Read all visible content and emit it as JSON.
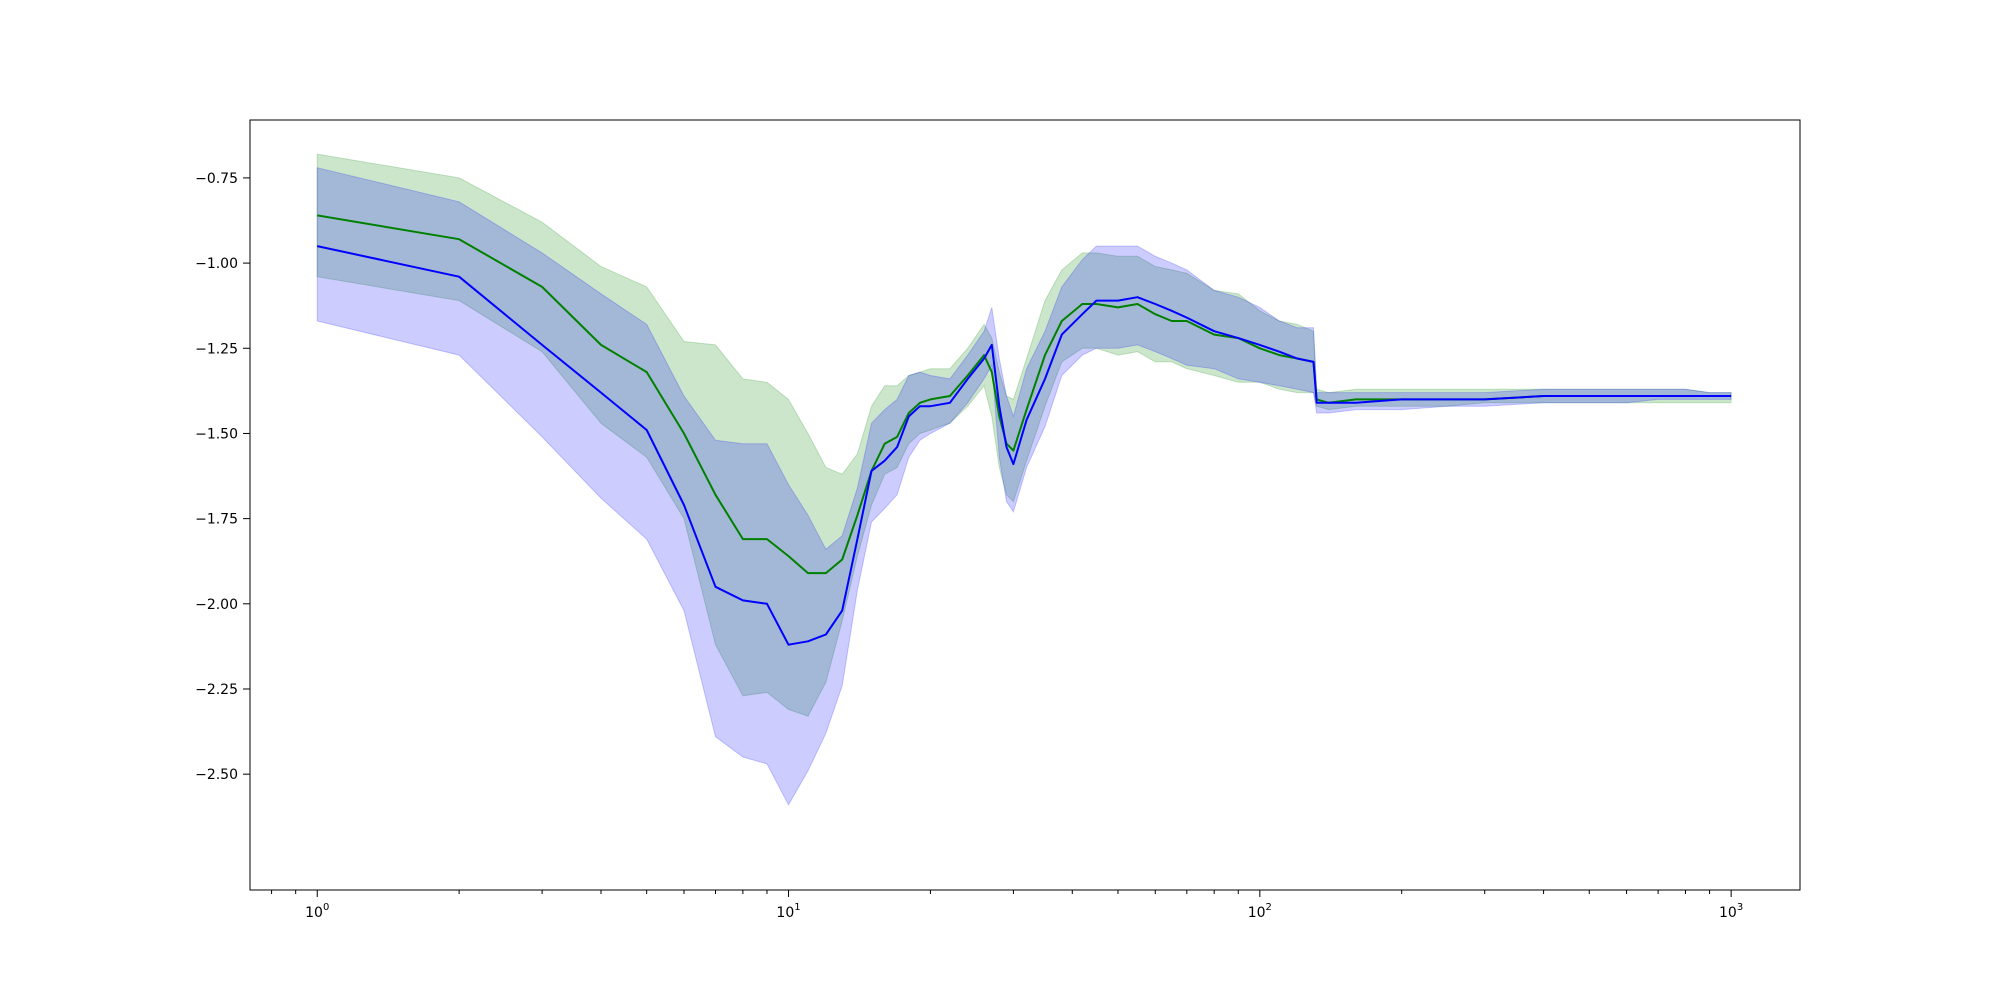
{
  "chart_data": {
    "type": "line",
    "title": "",
    "xlabel": "",
    "ylabel": "",
    "x_scale": "log",
    "xlim": [
      0.72,
      1400
    ],
    "ylim": [
      -2.84,
      -0.58
    ],
    "grid": false,
    "x_tick_labels": [
      {
        "value": 1,
        "base": "10",
        "exp": "0"
      },
      {
        "value": 10,
        "base": "10",
        "exp": "1"
      },
      {
        "value": 100,
        "base": "10",
        "exp": "2"
      },
      {
        "value": 1000,
        "base": "10",
        "exp": "3"
      }
    ],
    "y_ticks": [
      -0.75,
      -1.0,
      -1.25,
      -1.5,
      -1.75,
      -2.0,
      -2.25,
      -2.5
    ],
    "y_tick_labels": [
      "−0.75",
      "−1.00",
      "−1.25",
      "−1.50",
      "−1.75",
      "−2.00",
      "−2.25",
      "−2.50"
    ],
    "series": [
      {
        "color": "#008000",
        "band_color": "#008000",
        "band_opacity": 0.2,
        "x": [
          1,
          2,
          3,
          4,
          5,
          6,
          7,
          8,
          9,
          10,
          11,
          12,
          13,
          14,
          15,
          16,
          17,
          18,
          19,
          20,
          22,
          24,
          26,
          27,
          28,
          29,
          30,
          32,
          35,
          38,
          42,
          45,
          50,
          55,
          60,
          65,
          70,
          80,
          90,
          100,
          110,
          120,
          130,
          132,
          140,
          160,
          200,
          250,
          300,
          400,
          500,
          600,
          700,
          800,
          900,
          1000
        ],
        "y": [
          -0.86,
          -0.93,
          -1.07,
          -1.24,
          -1.32,
          -1.5,
          -1.68,
          -1.81,
          -1.81,
          -1.86,
          -1.91,
          -1.91,
          -1.87,
          -1.74,
          -1.61,
          -1.53,
          -1.51,
          -1.44,
          -1.41,
          -1.4,
          -1.39,
          -1.33,
          -1.27,
          -1.32,
          -1.45,
          -1.53,
          -1.55,
          -1.43,
          -1.27,
          -1.17,
          -1.12,
          -1.12,
          -1.13,
          -1.12,
          -1.15,
          -1.17,
          -1.17,
          -1.21,
          -1.22,
          -1.25,
          -1.27,
          -1.28,
          -1.29,
          -1.4,
          -1.41,
          -1.4,
          -1.4,
          -1.4,
          -1.4,
          -1.39,
          -1.39,
          -1.39,
          -1.39,
          -1.39,
          -1.39,
          -1.39
        ],
        "lower": [
          -1.04,
          -1.11,
          -1.26,
          -1.47,
          -1.57,
          -1.75,
          -2.12,
          -2.27,
          -2.26,
          -2.31,
          -2.33,
          -2.23,
          -2.05,
          -1.86,
          -1.71,
          -1.62,
          -1.6,
          -1.53,
          -1.5,
          -1.49,
          -1.47,
          -1.42,
          -1.36,
          -1.45,
          -1.6,
          -1.68,
          -1.7,
          -1.58,
          -1.42,
          -1.29,
          -1.25,
          -1.25,
          -1.27,
          -1.26,
          -1.29,
          -1.29,
          -1.31,
          -1.33,
          -1.35,
          -1.35,
          -1.37,
          -1.38,
          -1.38,
          -1.42,
          -1.43,
          -1.42,
          -1.42,
          -1.42,
          -1.41,
          -1.41,
          -1.41,
          -1.41,
          -1.41,
          -1.41,
          -1.41,
          -1.41
        ],
        "upper": [
          -0.68,
          -0.75,
          -0.88,
          -1.01,
          -1.07,
          -1.23,
          -1.24,
          -1.34,
          -1.35,
          -1.4,
          -1.5,
          -1.6,
          -1.62,
          -1.56,
          -1.42,
          -1.36,
          -1.36,
          -1.33,
          -1.32,
          -1.31,
          -1.31,
          -1.25,
          -1.18,
          -1.22,
          -1.32,
          -1.39,
          -1.4,
          -1.28,
          -1.11,
          -1.02,
          -0.97,
          -0.97,
          -0.98,
          -0.98,
          -1.01,
          -1.02,
          -1.03,
          -1.08,
          -1.09,
          -1.14,
          -1.17,
          -1.18,
          -1.2,
          -1.37,
          -1.38,
          -1.37,
          -1.37,
          -1.37,
          -1.37,
          -1.37,
          -1.37,
          -1.37,
          -1.37,
          -1.37,
          -1.38,
          -1.38
        ]
      },
      {
        "color": "#0000ff",
        "band_color": "#0000ff",
        "band_opacity": 0.2,
        "x": [
          1,
          2,
          3,
          4,
          5,
          6,
          7,
          8,
          9,
          10,
          11,
          12,
          13,
          14,
          15,
          16,
          17,
          18,
          19,
          20,
          22,
          24,
          26,
          27,
          28,
          29,
          30,
          32,
          35,
          38,
          42,
          45,
          50,
          55,
          60,
          65,
          70,
          80,
          90,
          100,
          110,
          120,
          130,
          132,
          140,
          160,
          200,
          250,
          300,
          400,
          500,
          600,
          700,
          800,
          900,
          1000
        ],
        "y": [
          -0.95,
          -1.04,
          -1.24,
          -1.38,
          -1.49,
          -1.71,
          -1.95,
          -1.99,
          -2.0,
          -2.12,
          -2.11,
          -2.09,
          -2.02,
          -1.81,
          -1.61,
          -1.58,
          -1.54,
          -1.45,
          -1.42,
          -1.42,
          -1.41,
          -1.34,
          -1.28,
          -1.24,
          -1.42,
          -1.54,
          -1.59,
          -1.46,
          -1.34,
          -1.21,
          -1.15,
          -1.11,
          -1.11,
          -1.1,
          -1.12,
          -1.14,
          -1.16,
          -1.2,
          -1.22,
          -1.24,
          -1.26,
          -1.28,
          -1.29,
          -1.41,
          -1.41,
          -1.41,
          -1.4,
          -1.4,
          -1.4,
          -1.39,
          -1.39,
          -1.39,
          -1.39,
          -1.39,
          -1.39,
          -1.39
        ],
        "lower": [
          -1.17,
          -1.27,
          -1.51,
          -1.69,
          -1.81,
          -2.02,
          -2.39,
          -2.45,
          -2.47,
          -2.59,
          -2.49,
          -2.38,
          -2.24,
          -1.96,
          -1.76,
          -1.72,
          -1.68,
          -1.57,
          -1.52,
          -1.5,
          -1.47,
          -1.41,
          -1.34,
          -1.3,
          -1.57,
          -1.7,
          -1.73,
          -1.6,
          -1.48,
          -1.33,
          -1.27,
          -1.25,
          -1.25,
          -1.24,
          -1.26,
          -1.28,
          -1.3,
          -1.31,
          -1.34,
          -1.35,
          -1.36,
          -1.37,
          -1.38,
          -1.44,
          -1.44,
          -1.43,
          -1.43,
          -1.42,
          -1.42,
          -1.41,
          -1.41,
          -1.41,
          -1.4,
          -1.4,
          -1.4,
          -1.4
        ],
        "upper": [
          -0.72,
          -0.82,
          -0.97,
          -1.09,
          -1.18,
          -1.39,
          -1.52,
          -1.53,
          -1.53,
          -1.65,
          -1.74,
          -1.84,
          -1.8,
          -1.66,
          -1.47,
          -1.43,
          -1.4,
          -1.33,
          -1.32,
          -1.33,
          -1.34,
          -1.27,
          -1.2,
          -1.13,
          -1.28,
          -1.39,
          -1.45,
          -1.31,
          -1.2,
          -1.07,
          -0.99,
          -0.95,
          -0.95,
          -0.95,
          -0.98,
          -1.0,
          -1.02,
          -1.08,
          -1.1,
          -1.13,
          -1.17,
          -1.19,
          -1.19,
          -1.38,
          -1.38,
          -1.38,
          -1.38,
          -1.38,
          -1.38,
          -1.37,
          -1.37,
          -1.37,
          -1.37,
          -1.37,
          -1.38,
          -1.38
        ]
      }
    ]
  }
}
